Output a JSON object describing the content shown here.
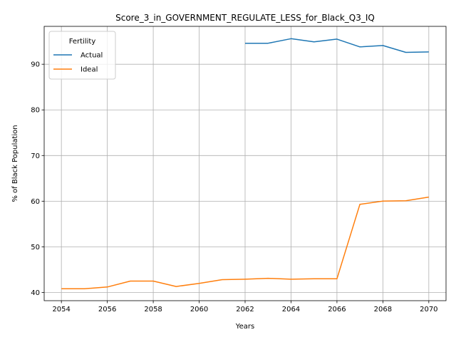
{
  "chart_data": {
    "type": "line",
    "title": "Score_3_in_GOVERNMENT_REGULATE_LESS_for_Black_Q3_IQ",
    "xlabel": "Years",
    "ylabel": "% of Black Population",
    "xlim": [
      2053.25,
      2070.75
    ],
    "ylim": [
      38.2,
      98.3
    ],
    "xticks": [
      2054,
      2056,
      2058,
      2060,
      2062,
      2064,
      2066,
      2068,
      2070
    ],
    "yticks": [
      40,
      50,
      60,
      70,
      80,
      90
    ],
    "grid": true,
    "legend": {
      "title": "Fertility",
      "placement": "top-left"
    },
    "series": [
      {
        "name": "Actual",
        "color": "#1f77b4",
        "x": [
          2062,
          2063,
          2064,
          2065,
          2066,
          2067,
          2068,
          2069,
          2070
        ],
        "y": [
          94.6,
          94.6,
          95.6,
          94.9,
          95.5,
          93.8,
          94.1,
          92.6,
          92.7
        ]
      },
      {
        "name": "Ideal",
        "color": "#ff7f0e",
        "x": [
          2054,
          2055,
          2056,
          2057,
          2058,
          2059,
          2060,
          2061,
          2062,
          2063,
          2064,
          2065,
          2066,
          2067,
          2068,
          2069,
          2070
        ],
        "y": [
          40.8,
          40.8,
          41.2,
          42.5,
          42.5,
          41.3,
          42.0,
          42.8,
          42.9,
          43.1,
          42.9,
          43.0,
          43.0,
          59.3,
          60.0,
          60.1,
          60.9
        ]
      }
    ]
  }
}
